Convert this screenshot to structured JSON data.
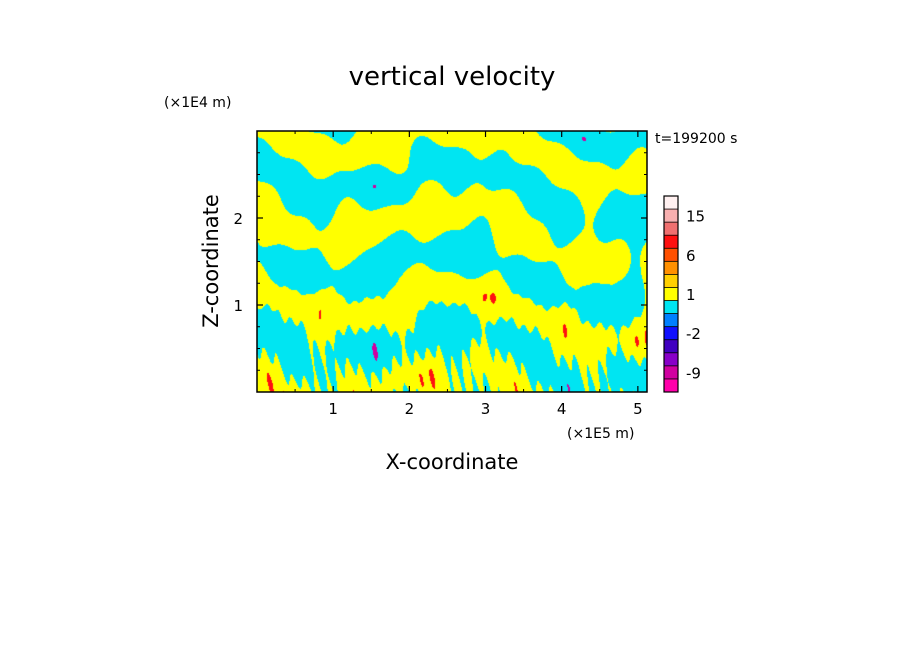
{
  "chart_data": {
    "type": "heatmap",
    "title": "vertical velocity",
    "xlabel": "X-coordinate",
    "ylabel": "Z-coordinate",
    "x_unit": "(×1E5 m)",
    "y_unit": "(×1E4 m)",
    "time_label": "t=199200 s",
    "xlim": [
      0,
      5.12
    ],
    "ylim": [
      0,
      3.0
    ],
    "x_ticks": [
      1,
      2,
      3,
      4,
      5
    ],
    "y_ticks": [
      1,
      2
    ],
    "grid": false,
    "legend": "right",
    "field_colors": {
      "updraft": "#ffff00",
      "downdraft": "#00e5f2",
      "strong_updraft": "#ff1010",
      "strong_downdraft": "#d000a0"
    },
    "colorbar": {
      "levels": [
        -12,
        -9,
        -6,
        -4,
        -2,
        -1,
        0,
        1,
        2,
        4,
        6,
        9,
        12,
        15,
        20
      ],
      "colors": [
        "#ff00aa",
        "#d000a0",
        "#8800c8",
        "#4000c0",
        "#1010ff",
        "#0080ff",
        "#00e5f2",
        "#ffff00",
        "#ffd000",
        "#ff9000",
        "#ff5000",
        "#ff1010",
        "#f07070",
        "#f8b0b0",
        "#fff0f0"
      ],
      "tick_labels": [
        "-9",
        "-2",
        "1",
        "6",
        "15"
      ],
      "tick_values": [
        -9,
        -2,
        1,
        6,
        15
      ]
    }
  }
}
